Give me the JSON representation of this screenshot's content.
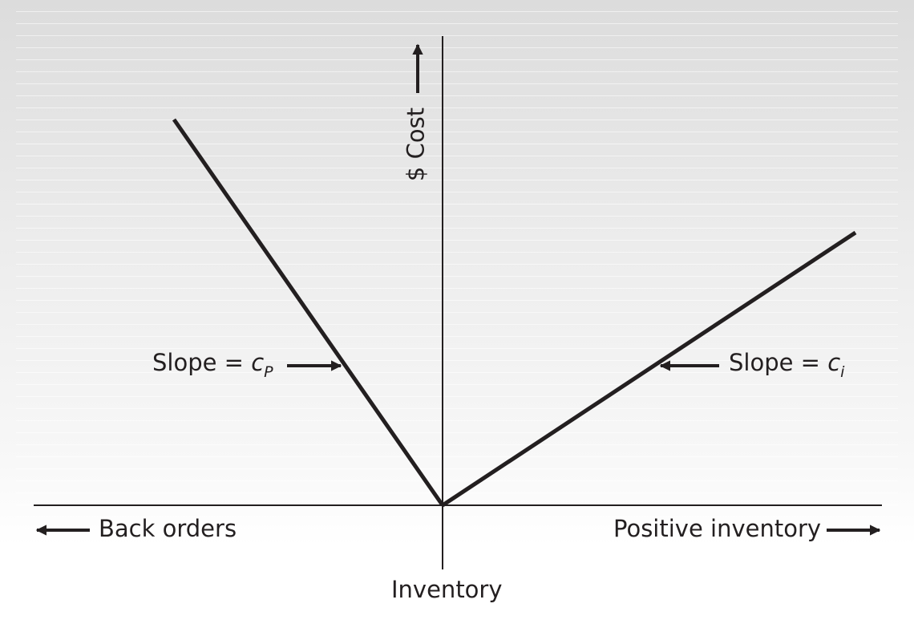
{
  "labels": {
    "y_axis": "$ Cost",
    "x_axis": "Inventory",
    "left_direction": "Back orders",
    "right_direction": "Positive inventory",
    "slope_left_prefix": "Slope = ",
    "slope_left_symbol": "c",
    "slope_left_subscript": "P",
    "slope_right_prefix": "Slope = ",
    "slope_right_symbol": "c",
    "slope_right_subscript": "i"
  },
  "colors": {
    "line": "#231f20"
  }
}
